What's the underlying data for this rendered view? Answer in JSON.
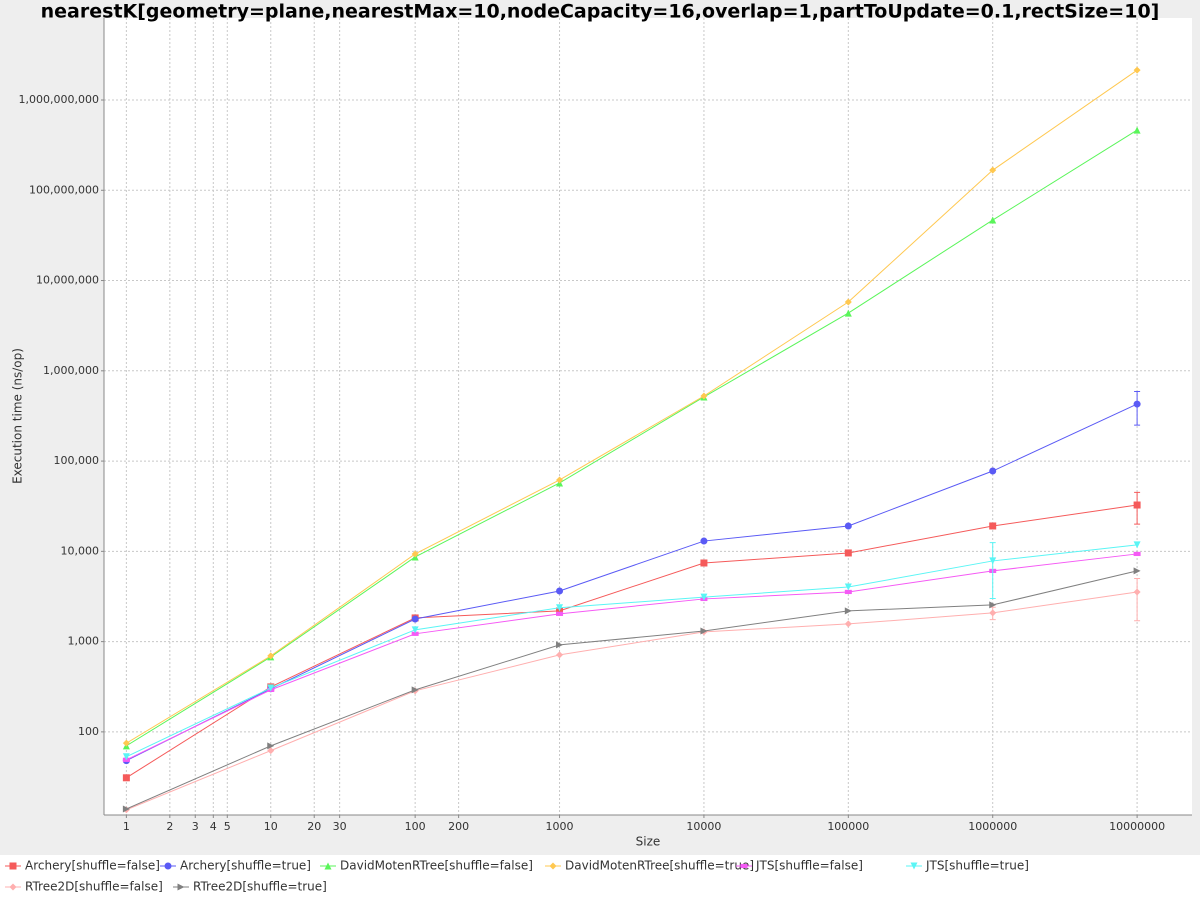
{
  "chart_data": {
    "type": "line",
    "title": "nearestK[geometry=plane,nearestMax=10,nodeCapacity=16,overlap=1,partToUpdate=0.1,rectSize=10]",
    "x_label": "Size",
    "y_label": "Execution time (ns/op)",
    "log_x": true,
    "log_y": true,
    "grid": true,
    "legend": "bottom",
    "x": [
      1,
      10,
      100,
      1000,
      10000,
      100000,
      1000000,
      10000000
    ],
    "xlim": [
      0.7,
      24000000
    ],
    "ylim": [
      12,
      8100000000
    ],
    "xticks": [
      1,
      2,
      3,
      4,
      5,
      10,
      20,
      30,
      100,
      200,
      1000,
      10000,
      100000,
      1000000,
      10000000
    ],
    "yticks": [
      {
        "value": 100,
        "label": "100"
      },
      {
        "value": 1000,
        "label": "1,000"
      },
      {
        "value": 10000,
        "label": "10,000"
      },
      {
        "value": 100000,
        "label": "100,000"
      },
      {
        "value": 1000000,
        "label": "1,000,000"
      },
      {
        "value": 10000000,
        "label": "10,000,000"
      },
      {
        "value": 100000000,
        "label": "100,000,000"
      },
      {
        "value": 1000000000,
        "label": "1,000,000,000"
      }
    ],
    "series": [
      {
        "name": "Archery[shuffle=false]",
        "color": "#f55a5a",
        "marker": "square",
        "values": [
          31,
          315,
          1830,
          2190,
          7430,
          9600,
          19100,
          32600
        ],
        "errors_low": [
          null,
          null,
          null,
          null,
          null,
          null,
          null,
          20000
        ],
        "errors_high": [
          null,
          null,
          null,
          null,
          null,
          null,
          null,
          45000
        ]
      },
      {
        "name": "Archery[shuffle=true]",
        "color": "#5a5af5",
        "marker": "circle",
        "values": [
          48,
          300,
          1780,
          3640,
          13000,
          19100,
          77600,
          428000
        ],
        "errors_low": [
          null,
          null,
          null,
          null,
          null,
          null,
          null,
          250000
        ],
        "errors_high": [
          null,
          null,
          null,
          null,
          null,
          null,
          null,
          590000
        ]
      },
      {
        "name": "DavidMotenRTree[shuffle=false]",
        "color": "#5af55a",
        "marker": "triangle-up",
        "values": [
          70,
          677,
          8670,
          57200,
          513000,
          4360000,
          46800000,
          464000000
        ]
      },
      {
        "name": "DavidMotenRTree[shuffle=true]",
        "color": "#ffc850",
        "marker": "diamond",
        "values": [
          75,
          694,
          9360,
          61800,
          526000,
          5780000,
          167000000,
          2140000000
        ]
      },
      {
        "name": "JTS[shuffle=false]",
        "color": "#f55af5",
        "marker": "rect",
        "values": [
          49,
          292,
          1220,
          2030,
          2970,
          3550,
          6070,
          9360
        ]
      },
      {
        "name": "JTS[shuffle=true]",
        "color": "#5af5f5",
        "marker": "triangle-down",
        "values": [
          53,
          306,
          1350,
          2370,
          3110,
          4030,
          7830,
          11800
        ],
        "errors_low": [
          null,
          null,
          null,
          null,
          null,
          null,
          3000,
          null
        ],
        "errors_high": [
          null,
          null,
          null,
          null,
          null,
          null,
          12500,
          null
        ]
      },
      {
        "name": "RTree2D[shuffle=false]",
        "color": "#ffafaf",
        "marker": "diamond",
        "values": [
          13.7,
          62,
          285,
          713,
          1280,
          1570,
          2080,
          3550
        ],
        "errors_low": [
          null,
          null,
          null,
          null,
          null,
          null,
          1750,
          1700
        ],
        "errors_high": [
          null,
          null,
          null,
          null,
          null,
          null,
          2400,
          5000
        ]
      },
      {
        "name": "RTree2D[shuffle=true]",
        "color": "#808080",
        "marker": "triangle-right",
        "values": [
          14,
          70,
          292,
          919,
          1310,
          2190,
          2550,
          6070
        ]
      }
    ]
  }
}
